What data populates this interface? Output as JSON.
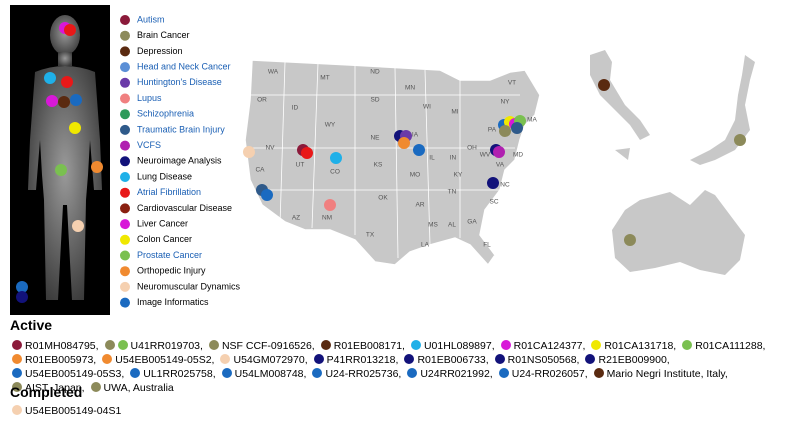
{
  "legend": [
    {
      "label": "Autism",
      "color": "#8b1a3a",
      "link": true
    },
    {
      "label": "Brain Cancer",
      "color": "#8c8a5a",
      "link": false
    },
    {
      "label": "Depression",
      "color": "#5a2a10",
      "link": false
    },
    {
      "label": "Head and Neck Cancer",
      "color": "#5b8fd6",
      "link": true
    },
    {
      "label": "Huntington's Disease",
      "color": "#6a3aa8",
      "link": true
    },
    {
      "label": "Lupus",
      "color": "#f08080",
      "link": true
    },
    {
      "label": "Schizophrenia",
      "color": "#2e9a5a",
      "link": true
    },
    {
      "label": "Traumatic Brain Injury",
      "color": "#2f5a8a",
      "link": true
    },
    {
      "label": "VCFS",
      "color": "#b020b0",
      "link": true
    },
    {
      "label": "Neuroimage Analysis",
      "color": "#12127a",
      "link": false
    },
    {
      "label": "Lung Disease",
      "color": "#1fb0e8",
      "link": false
    },
    {
      "label": "Atrial Fibrillation",
      "color": "#e81818",
      "link": true
    },
    {
      "label": "Cardiovascular Disease",
      "color": "#8a2010",
      "link": false
    },
    {
      "label": "Liver Cancer",
      "color": "#d818d8",
      "link": false
    },
    {
      "label": "Colon Cancer",
      "color": "#f0e800",
      "link": false
    },
    {
      "label": "Prostate Cancer",
      "color": "#7ac050",
      "link": true
    },
    {
      "label": "Orthopedic Injury",
      "color": "#f08a30",
      "link": false
    },
    {
      "label": "Neuromuscular Dynamics",
      "color": "#f5d0b0",
      "link": false
    },
    {
      "label": "Image Informatics",
      "color": "#1a6ac0",
      "link": false
    }
  ],
  "map": {
    "state_labels": [
      "WA",
      "MT",
      "ND",
      "MN",
      "OR",
      "ID",
      "WY",
      "SD",
      "WI",
      "MI",
      "NY",
      "VT",
      "NV",
      "NE",
      "IA",
      "UT",
      "CO",
      "KS",
      "MO",
      "IL",
      "IN",
      "OH",
      "PA",
      "CA",
      "AZ",
      "NM",
      "OK",
      "AR",
      "TN",
      "KY",
      "WV",
      "VA",
      "NC",
      "SC",
      "MS",
      "AL",
      "GA",
      "TX",
      "LA",
      "FL",
      "MA",
      "MD"
    ]
  },
  "active": {
    "title": "Active",
    "grants": [
      {
        "label": "R01MH084795,",
        "colors": [
          "#8b1a3a"
        ]
      },
      {
        "label": "U41RR019703,",
        "colors": [
          "#8c8a5a",
          "#7ac050"
        ]
      },
      {
        "label": "NSF CCF-0916526,",
        "colors": [
          "#8c8a5a"
        ]
      },
      {
        "label": "R01EB008171,",
        "colors": [
          "#5a2a10"
        ]
      },
      {
        "label": "U01HL089897,",
        "colors": [
          "#1fb0e8"
        ]
      },
      {
        "label": "R01CA124377,",
        "colors": [
          "#d818d8"
        ]
      },
      {
        "label": "R01CA131718,",
        "colors": [
          "#f0e800"
        ]
      },
      {
        "label": "R01CA111288,",
        "colors": [
          "#7ac050"
        ]
      },
      {
        "label": "R01EB005973,",
        "colors": [
          "#f08a30"
        ]
      },
      {
        "label": "U54EB005149-05S2,",
        "colors": [
          "#f08a30"
        ]
      },
      {
        "label": "U54GM072970,",
        "colors": [
          "#f5d0b0"
        ]
      },
      {
        "label": "P41RR013218,",
        "colors": [
          "#12127a"
        ]
      },
      {
        "label": "R01EB006733,",
        "colors": [
          "#12127a"
        ]
      },
      {
        "label": "R01NS050568,",
        "colors": [
          "#12127a"
        ]
      },
      {
        "label": "R21EB009900,",
        "colors": [
          "#12127a"
        ]
      },
      {
        "label": "U54EB005149-05S3,",
        "colors": [
          "#1a6ac0"
        ]
      },
      {
        "label": "UL1RR025758,",
        "colors": [
          "#1a6ac0"
        ]
      },
      {
        "label": "U54LM008748,",
        "colors": [
          "#1a6ac0"
        ]
      },
      {
        "label": "U24-RR025736,",
        "colors": [
          "#1a6ac0"
        ]
      },
      {
        "label": "U24RR021992,",
        "colors": [
          "#1a6ac0"
        ]
      },
      {
        "label": "U24-RR026057,",
        "colors": [
          "#1a6ac0"
        ]
      },
      {
        "label": "Mario Negri Institute, Italy,",
        "colors": [
          "#5a2a10"
        ]
      },
      {
        "label": "AIST, Japan,",
        "colors": [
          "#8c8a5a"
        ]
      },
      {
        "label": "UWA, Australia",
        "colors": [
          "#8c8a5a"
        ]
      }
    ]
  },
  "completed": {
    "title": "Completed",
    "grants": [
      {
        "label": "U54EB005149-04S1",
        "colors": [
          "#f5d0b0"
        ]
      }
    ]
  }
}
